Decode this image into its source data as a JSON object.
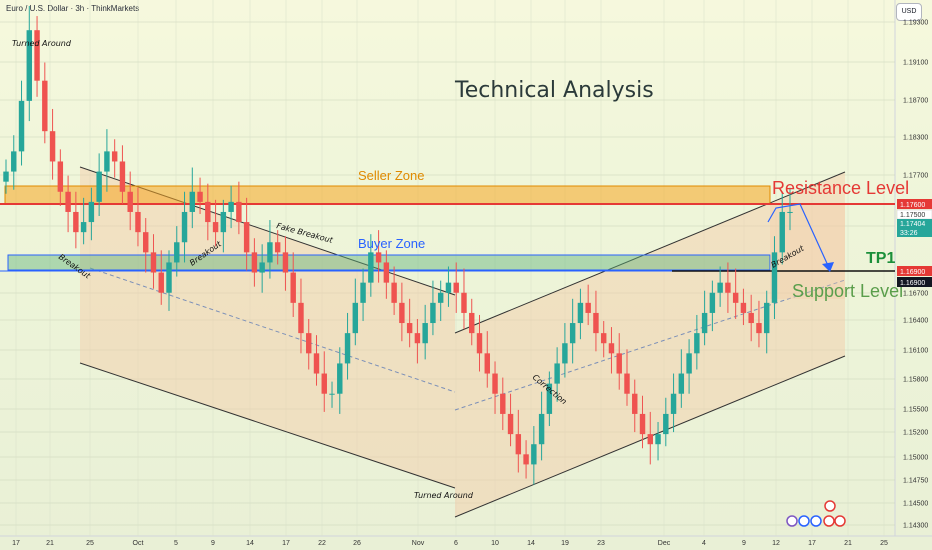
{
  "header": {
    "title": "Euro / U.S. Dollar · 3h · ThinkMarkets",
    "currency": "USD"
  },
  "colors": {
    "up": "#26a69a",
    "down": "#ef5350",
    "seller_zone": "#f5a623",
    "buyer_zone": "#4caf50",
    "resistance": "#e53935",
    "support": "#1a1a1a",
    "projection": "#2962ff"
  },
  "chart_data": {
    "type": "candlestick",
    "title": "Technical Analysis",
    "x_ticks": [
      "17",
      "21",
      "25",
      "Oct",
      "5",
      "9",
      "14",
      "17",
      "22",
      "26",
      "Nov",
      "6",
      "10",
      "14",
      "19",
      "23",
      "Dec",
      "4",
      "9",
      "12",
      "17",
      "21",
      "25"
    ],
    "y_ticks": [
      "1.19300",
      "1.19100",
      "1.18700",
      "1.18300",
      "1.17700",
      "1.17100",
      "1.16700",
      "1.16400",
      "1.16100",
      "1.15800",
      "1.15500",
      "1.15200",
      "1.15000",
      "1.14750",
      "1.14500",
      "1.14300"
    ],
    "price_labels": [
      {
        "text": "1.17600",
        "color": "#e53935"
      },
      {
        "text": "1.17500",
        "color": "#ffffff"
      },
      {
        "text": "1.17404",
        "color": "#26a69a"
      },
      {
        "text": "33:26",
        "color": "#26a69a"
      },
      {
        "text": "1.16900",
        "color": "#e53935"
      },
      {
        "text": "1.16900",
        "color": "#131722"
      }
    ],
    "zones": [
      {
        "name": "Seller Zone",
        "color": "#f5a623"
      },
      {
        "name": "Buyer Zone",
        "color": "#2962ff"
      }
    ],
    "levels": [
      {
        "name": "Resistance Level",
        "value": 1.176,
        "color": "#e53935"
      },
      {
        "name": "TP1",
        "value": 1.169,
        "color": "#1b8f3a"
      },
      {
        "name": "Support Level",
        "value": 1.169,
        "color": "#5a9e4b"
      }
    ],
    "annotations": [
      "Turned Around",
      "Breakout",
      "Breakout",
      "Fake Breakout",
      "Turned Around",
      "Correction",
      "Breakout"
    ],
    "closes": [
      1.178,
      1.18,
      1.185,
      1.192,
      1.187,
      1.182,
      1.179,
      1.176,
      1.174,
      1.172,
      1.173,
      1.175,
      1.178,
      1.18,
      1.179,
      1.176,
      1.174,
      1.172,
      1.17,
      1.168,
      1.166,
      1.169,
      1.171,
      1.174,
      1.176,
      1.175,
      1.173,
      1.172,
      1.174,
      1.175,
      1.173,
      1.17,
      1.168,
      1.169,
      1.171,
      1.17,
      1.168,
      1.165,
      1.162,
      1.16,
      1.158,
      1.156,
      1.156,
      1.159,
      1.162,
      1.165,
      1.167,
      1.17,
      1.169,
      1.167,
      1.165,
      1.163,
      1.162,
      1.161,
      1.163,
      1.165,
      1.166,
      1.167,
      1.166,
      1.164,
      1.162,
      1.16,
      1.158,
      1.156,
      1.154,
      1.152,
      1.15,
      1.149,
      1.151,
      1.154,
      1.157,
      1.159,
      1.161,
      1.163,
      1.165,
      1.164,
      1.162,
      1.161,
      1.16,
      1.158,
      1.156,
      1.154,
      1.152,
      1.151,
      1.152,
      1.154,
      1.156,
      1.158,
      1.16,
      1.162,
      1.164,
      1.166,
      1.167,
      1.166,
      1.165,
      1.164,
      1.163,
      1.162,
      1.165,
      1.17,
      1.174,
      1.174
    ]
  }
}
